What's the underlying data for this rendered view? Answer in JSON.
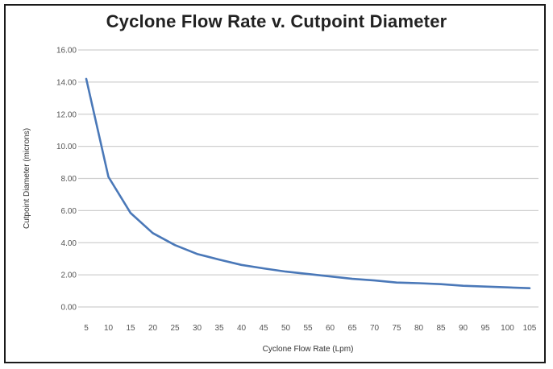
{
  "chart_data": {
    "type": "line",
    "title": "Cyclone Flow Rate v. Cutpoint Diameter",
    "xlabel": "Cyclone Flow Rate (Lpm)",
    "ylabel": "Cutpoint Diameter (microns)",
    "categories": [
      "5",
      "10",
      "15",
      "20",
      "25",
      "30",
      "35",
      "40",
      "45",
      "50",
      "55",
      "60",
      "65",
      "70",
      "75",
      "80",
      "85",
      "90",
      "95",
      "100",
      "105"
    ],
    "series": [
      {
        "values": [
          14.2,
          8.1,
          5.85,
          4.6,
          3.85,
          3.3,
          2.95,
          2.62,
          2.4,
          2.2,
          2.05,
          1.9,
          1.75,
          1.65,
          1.52,
          1.48,
          1.42,
          1.32,
          1.27,
          1.22,
          1.17
        ],
        "color": "#4a78b8"
      }
    ],
    "yticks": [
      "0.00",
      "2.00",
      "4.00",
      "6.00",
      "8.00",
      "10.00",
      "12.00",
      "14.00",
      "16.00"
    ],
    "ylim": [
      0,
      16
    ],
    "grid": true,
    "legend": "none"
  }
}
